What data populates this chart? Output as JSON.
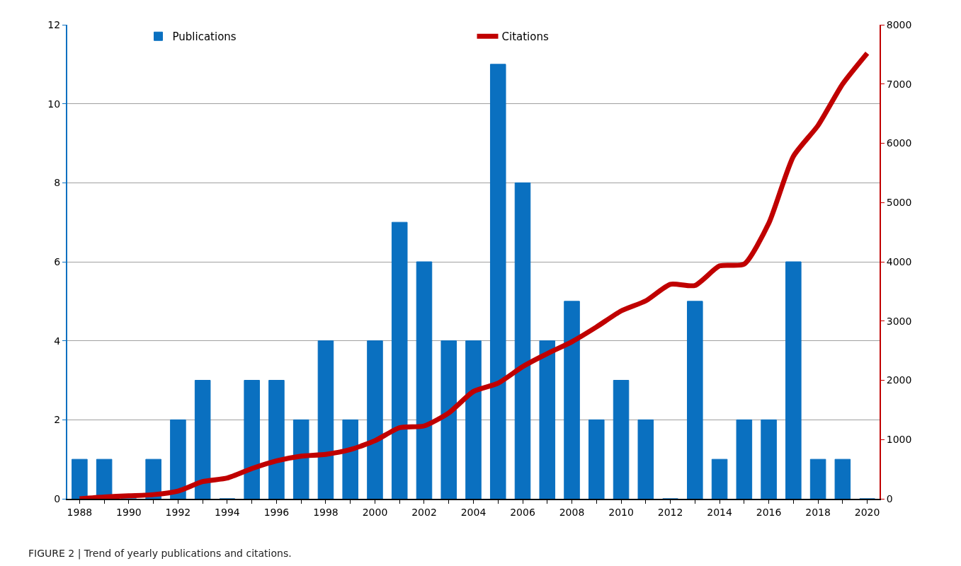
{
  "chart_data": {
    "type": "bar",
    "x": [
      1988,
      1989,
      1990,
      1991,
      1992,
      1993,
      1994,
      1995,
      1996,
      1997,
      1998,
      1999,
      2000,
      2001,
      2002,
      2003,
      2004,
      2005,
      2006,
      2007,
      2008,
      2009,
      2010,
      2011,
      2012,
      2013,
      2014,
      2015,
      2016,
      2017,
      2018,
      2019,
      2020
    ],
    "series": [
      {
        "name": "Publications",
        "color": "#0a70c0",
        "values": [
          1,
          1,
          0,
          1,
          2,
          3,
          0,
          3,
          3,
          2,
          4,
          2,
          4,
          7,
          6,
          4,
          4,
          11,
          8,
          4,
          5,
          2,
          3,
          2,
          0,
          5,
          1,
          2,
          2,
          6,
          1,
          1,
          0
        ]
      },
      {
        "name": "Citations",
        "type": "line",
        "axis": "y2",
        "color": "#c00000",
        "values": [
          0,
          30,
          50,
          70,
          130,
          290,
          350,
          510,
          640,
          720,
          750,
          830,
          980,
          1200,
          1230,
          1450,
          1810,
          1950,
          2230,
          2450,
          2650,
          2900,
          3170,
          3340,
          3620,
          3600,
          3930,
          3960,
          4650,
          5780,
          6300,
          7000,
          7520
        ]
      }
    ],
    "xlim": [
      1987.5,
      2020.5
    ],
    "xticks": [
      1988,
      {
        "value": 1989,
        "label": null
      },
      1990,
      {
        "value": 1991,
        "label": null
      },
      1992,
      {
        "value": 1993,
        "label": null
      },
      1994,
      {
        "value": 1995,
        "label": null
      },
      1996,
      {
        "value": 1997,
        "label": null
      },
      1998,
      {
        "value": 1999,
        "label": null
      },
      2000,
      {
        "value": 2001,
        "label": null
      },
      2002,
      {
        "value": 2003,
        "label": null
      },
      2004,
      {
        "value": 2005,
        "label": null
      },
      2006,
      {
        "value": 2007,
        "label": null
      },
      2008,
      {
        "value": 2009,
        "label": null
      },
      2010,
      {
        "value": 2011,
        "label": null
      },
      2012,
      {
        "value": 2013,
        "label": null
      },
      2014,
      {
        "value": 2015,
        "label": null
      },
      2016,
      {
        "value": 2017,
        "label": null
      },
      2018,
      {
        "value": 2019,
        "label": null
      },
      2020
    ],
    "ylim": [
      0,
      12
    ],
    "yticks": [
      0,
      2,
      4,
      6,
      8,
      10,
      12
    ],
    "y2lim": [
      0,
      8000
    ],
    "y2ticks": [
      0,
      1000,
      2000,
      3000,
      4000,
      5000,
      6000,
      7000,
      8000
    ],
    "grid": "y",
    "legend": "top",
    "marker": "none",
    "line_style": "solid",
    "annotations": [
      "FIGURE 2 | Trend of yearly publications and citations."
    ]
  }
}
